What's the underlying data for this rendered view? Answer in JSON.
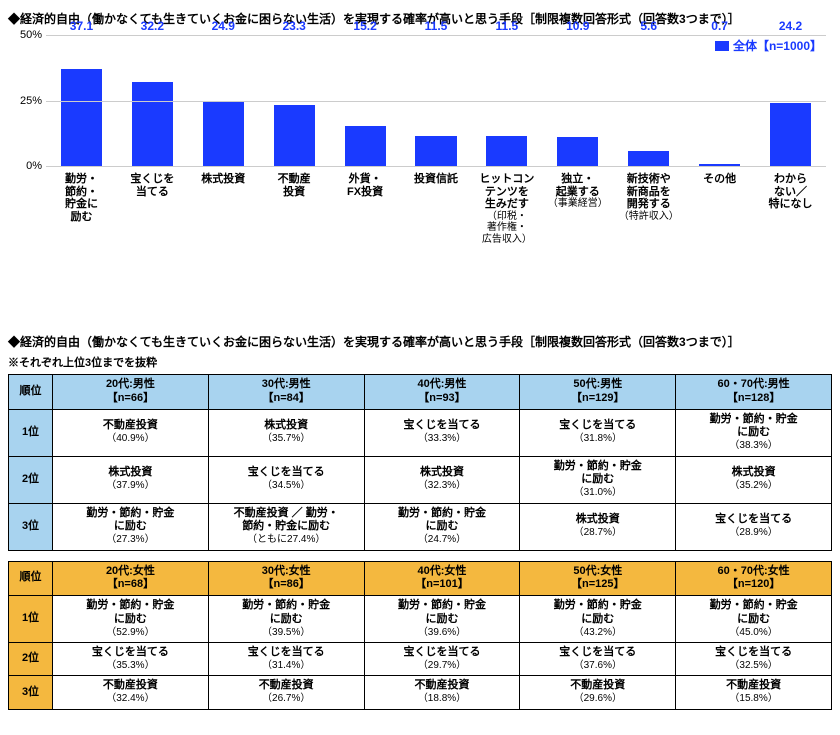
{
  "chart": {
    "title": "◆経済的自由（働かなくても生きていくお金に困らない生活）を実現する確率が高いと思う手段［制限複数回答形式（回答数3つまで）］",
    "legend": "全体【n=1000】",
    "legend_color": "#1a3aff",
    "ylim_max": 50,
    "yticks": [
      0,
      25,
      50
    ],
    "bar_color": "#1a3aff",
    "bg": "#ffffff",
    "grid_color": "#cccccc",
    "categories": [
      {
        "label": "勤労・\n節約・\n貯金に\n励む",
        "sub": "",
        "value": 37.1
      },
      {
        "label": "宝くじを\n当てる",
        "sub": "",
        "value": 32.2
      },
      {
        "label": "株式投資",
        "sub": "",
        "value": 24.9
      },
      {
        "label": "不動産\n投資",
        "sub": "",
        "value": 23.3
      },
      {
        "label": "外貨・\nFX投資",
        "sub": "",
        "value": 15.2
      },
      {
        "label": "投資信託",
        "sub": "",
        "value": 11.5
      },
      {
        "label": "ヒットコン\nテンツを\n生みだす",
        "sub": "（印税・\n著作権・\n広告収入）",
        "value": 11.5
      },
      {
        "label": "独立・\n起業する",
        "sub": "（事業経営）",
        "value": 10.9
      },
      {
        "label": "新技術や\n新商品を\n開発する",
        "sub": "（特許収入）",
        "value": 5.6
      },
      {
        "label": "その他",
        "sub": "",
        "value": 0.7
      },
      {
        "label": "わから\nない／\n特になし",
        "sub": "",
        "value": 24.2
      }
    ]
  },
  "table_title": "◆経済的自由（働かなくても生きていくお金に困らない生活）を実現する確率が高いと思う手段［制限複数回答形式（回答数3つまで）］",
  "table_sub": "※それぞれ上位3位までを抜粋",
  "rank_header": "順位",
  "ranks": [
    "1位",
    "2位",
    "3位"
  ],
  "male": {
    "header_bg": "#a8d3ef",
    "cols": [
      {
        "h": "20代:男性\n【n=66】",
        "rows": [
          {
            "l": "不動産投資",
            "p": "（40.9%）"
          },
          {
            "l": "株式投資",
            "p": "（37.9%）"
          },
          {
            "l": "勤労・節約・貯金\nに励む",
            "p": "（27.3%）"
          }
        ]
      },
      {
        "h": "30代:男性\n【n=84】",
        "rows": [
          {
            "l": "株式投資",
            "p": "（35.7%）"
          },
          {
            "l": "宝くじを当てる",
            "p": "（34.5%）"
          },
          {
            "l": "不動産投資 ／ 勤労・\n節約・貯金に励む",
            "p": "（ともに27.4%）"
          }
        ]
      },
      {
        "h": "40代:男性\n【n=93】",
        "rows": [
          {
            "l": "宝くじを当てる",
            "p": "（33.3%）"
          },
          {
            "l": "株式投資",
            "p": "（32.3%）"
          },
          {
            "l": "勤労・節約・貯金\nに励む",
            "p": "（24.7%）"
          }
        ]
      },
      {
        "h": "50代:男性\n【n=129】",
        "rows": [
          {
            "l": "宝くじを当てる",
            "p": "（31.8%）"
          },
          {
            "l": "勤労・節約・貯金\nに励む",
            "p": "（31.0%）"
          },
          {
            "l": "株式投資",
            "p": "（28.7%）"
          }
        ]
      },
      {
        "h": "60・70代:男性\n【n=128】",
        "rows": [
          {
            "l": "勤労・節約・貯金\nに励む",
            "p": "（38.3%）"
          },
          {
            "l": "株式投資",
            "p": "（35.2%）"
          },
          {
            "l": "宝くじを当てる",
            "p": "（28.9%）"
          }
        ]
      }
    ]
  },
  "female": {
    "header_bg": "#f4b83f",
    "cols": [
      {
        "h": "20代:女性\n【n=68】",
        "rows": [
          {
            "l": "勤労・節約・貯金\nに励む",
            "p": "（52.9%）"
          },
          {
            "l": "宝くじを当てる",
            "p": "（35.3%）"
          },
          {
            "l": "不動産投資",
            "p": "（32.4%）"
          }
        ]
      },
      {
        "h": "30代:女性\n【n=86】",
        "rows": [
          {
            "l": "勤労・節約・貯金\nに励む",
            "p": "（39.5%）"
          },
          {
            "l": "宝くじを当てる",
            "p": "（31.4%）"
          },
          {
            "l": "不動産投資",
            "p": "（26.7%）"
          }
        ]
      },
      {
        "h": "40代:女性\n【n=101】",
        "rows": [
          {
            "l": "勤労・節約・貯金\nに励む",
            "p": "（39.6%）"
          },
          {
            "l": "宝くじを当てる",
            "p": "（29.7%）"
          },
          {
            "l": "不動産投資",
            "p": "（18.8%）"
          }
        ]
      },
      {
        "h": "50代:女性\n【n=125】",
        "rows": [
          {
            "l": "勤労・節約・貯金\nに励む",
            "p": "（43.2%）"
          },
          {
            "l": "宝くじを当てる",
            "p": "（37.6%）"
          },
          {
            "l": "不動産投資",
            "p": "（29.6%）"
          }
        ]
      },
      {
        "h": "60・70代:女性\n【n=120】",
        "rows": [
          {
            "l": "勤労・節約・貯金\nに励む",
            "p": "（45.0%）"
          },
          {
            "l": "宝くじを当てる",
            "p": "（32.5%）"
          },
          {
            "l": "不動産投資",
            "p": "（15.8%）"
          }
        ]
      }
    ]
  }
}
